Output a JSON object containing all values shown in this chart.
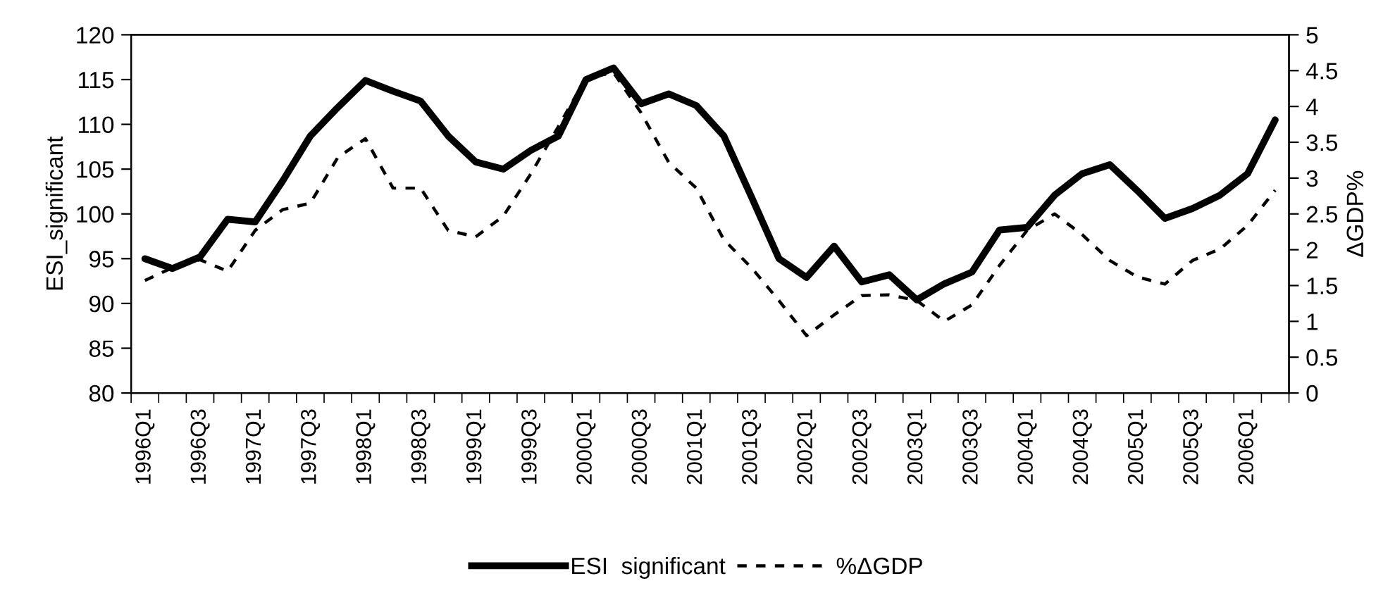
{
  "chart_data": {
    "type": "line",
    "categories": [
      "1996Q1",
      null,
      "1996Q3",
      null,
      "1997Q1",
      null,
      "1997Q3",
      null,
      "1998Q1",
      null,
      "1998Q3",
      null,
      "1999Q1",
      null,
      "1999Q3",
      null,
      "2000Q1",
      null,
      "2000Q3",
      null,
      "2001Q1",
      null,
      "2001Q3",
      null,
      "2002Q1",
      null,
      "2002Q3",
      null,
      "2003Q1",
      null,
      "2003Q3",
      null,
      "2004Q1",
      null,
      "2004Q3",
      null,
      "2005Q1",
      null,
      "2005Q3",
      null,
      "2006Q1",
      null
    ],
    "series": [
      {
        "name": "ESI  significant",
        "color": "#000000",
        "line_style": "solid",
        "values": [
          95.0,
          93.9,
          95.2,
          99.4,
          99.1,
          103.7,
          108.7,
          111.9,
          114.9,
          113.7,
          112.6,
          108.7,
          105.8,
          105.0,
          107.1,
          108.7,
          115.0,
          116.3,
          112.3,
          113.4,
          112.1,
          108.7,
          101.9,
          95.0,
          92.9,
          96.4,
          92.4,
          93.2,
          90.4,
          92.2,
          93.5,
          98.2,
          98.5,
          102.1,
          104.5,
          105.5,
          102.6,
          99.5,
          100.6,
          102.1,
          104.5,
          110.5
        ]
      },
      {
        "name": "%ΔGDP",
        "color": "#000000",
        "line_style": "dashed",
        "axis": "y2",
        "values": [
          1.57,
          1.75,
          1.86,
          1.7,
          2.27,
          2.56,
          2.65,
          3.29,
          3.55,
          2.86,
          2.86,
          2.27,
          2.18,
          2.47,
          3.06,
          3.72,
          4.4,
          4.47,
          3.91,
          3.22,
          2.86,
          2.14,
          1.75,
          1.29,
          0.8,
          1.09,
          1.36,
          1.37,
          1.29,
          1.0,
          1.23,
          1.78,
          2.27,
          2.5,
          2.21,
          1.85,
          1.62,
          1.52,
          1.85,
          2.01,
          2.34,
          2.83
        ]
      }
    ],
    "ylabel": "ESI_significant",
    "y2label": "ΔGDP%",
    "ylim": [
      80,
      120
    ],
    "yticks": [
      80,
      85,
      90,
      95,
      100,
      105,
      110,
      115,
      120
    ],
    "y2lim": [
      0,
      5
    ],
    "y2ticks": [
      0,
      {
        "value": 0.5,
        "label": "0.5"
      },
      1,
      {
        "value": 1.5,
        "label": "1.5"
      },
      2,
      {
        "value": 2.5,
        "label": "2.5"
      },
      3,
      {
        "value": 3.5,
        "label": "3.5"
      },
      4,
      {
        "value": 4.5,
        "label": "4.5"
      },
      5
    ],
    "grid": false,
    "legend": "bottom"
  }
}
